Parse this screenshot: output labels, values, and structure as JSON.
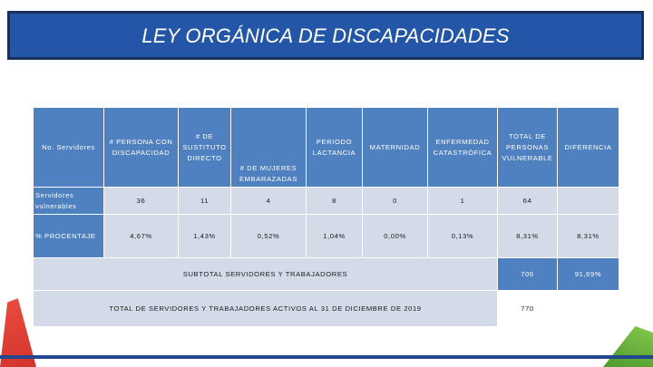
{
  "title": "LEY ORGÁNICA DE DISCAPACIDADES",
  "table": {
    "headers": {
      "servidores": "No. Servidores",
      "persona_discapacidad": "# PERSONA CON DISCAPACIDAD",
      "sustituto": "# DE SUSTITUTO DIRECTO",
      "mujeres_embarazadas": "# DE MUJERES EMBARAZADAS",
      "lactancia": "PERIODO LACTANCIA",
      "maternidad": "MATERNIDAD",
      "catastrofica": "ENFERMEDAD CATASTRÓFICA",
      "total": "TOTAL DE PERSONAS VULNERABLE",
      "diferencia": "DIFERENCIA"
    },
    "rows": [
      {
        "label": "Servidores vulnerables",
        "values": [
          "36",
          "11",
          "4",
          "8",
          "0",
          "1",
          "64",
          ""
        ]
      },
      {
        "label": "% PROCENTAJE",
        "values": [
          "4,67%",
          "1,43%",
          "0,52%",
          "1,04%",
          "0,00%",
          "0,13%",
          "8,31%",
          "8,31%"
        ]
      }
    ],
    "subtotal": {
      "label": "SUBTOTAL SERVIDORES Y TRABAJADORES",
      "value": "706",
      "diferencia": "91,69%"
    },
    "total": {
      "label": "TOTAL DE SERVIDORES Y TRABAJADORES ACTIVOS AL 31 DE DICIEMBRE DE 2019",
      "value": "770"
    }
  },
  "colors": {
    "header_blue": "#4f80bf",
    "light_cell": "#d3dbe9",
    "title_blue": "#2456a8"
  }
}
